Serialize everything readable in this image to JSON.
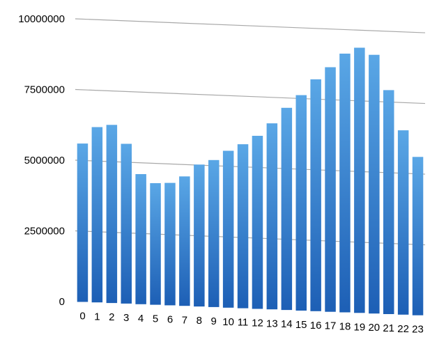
{
  "chart_data": {
    "type": "bar",
    "title": "",
    "xlabel": "",
    "ylabel": "",
    "categories": [
      "0",
      "1",
      "2",
      "3",
      "4",
      "5",
      "6",
      "7",
      "8",
      "9",
      "10",
      "11",
      "12",
      "13",
      "14",
      "15",
      "16",
      "17",
      "18",
      "19",
      "20",
      "21",
      "22",
      "23"
    ],
    "series": [
      {
        "values": [
          5600000,
          6200000,
          6300000,
          5650000,
          4600000,
          4300000,
          4330000,
          4580000,
          5020000,
          5200000,
          5550000,
          5800000,
          6120000,
          6580000,
          7150000,
          7620000,
          8200000,
          8650000,
          9150000,
          9380000,
          9150000,
          7920000,
          6520000,
          5600000
        ]
      }
    ],
    "yticks": [
      "0",
      "2500000",
      "5000000",
      "7500000",
      "10000000"
    ],
    "ylim": [
      0,
      10000000
    ],
    "grid": true,
    "legend": "none",
    "colors": {
      "bar_top": "#5aa7e6",
      "bar_bottom": "#1d5fb5",
      "grid": "#a8a8a8",
      "text": "#000000"
    }
  }
}
